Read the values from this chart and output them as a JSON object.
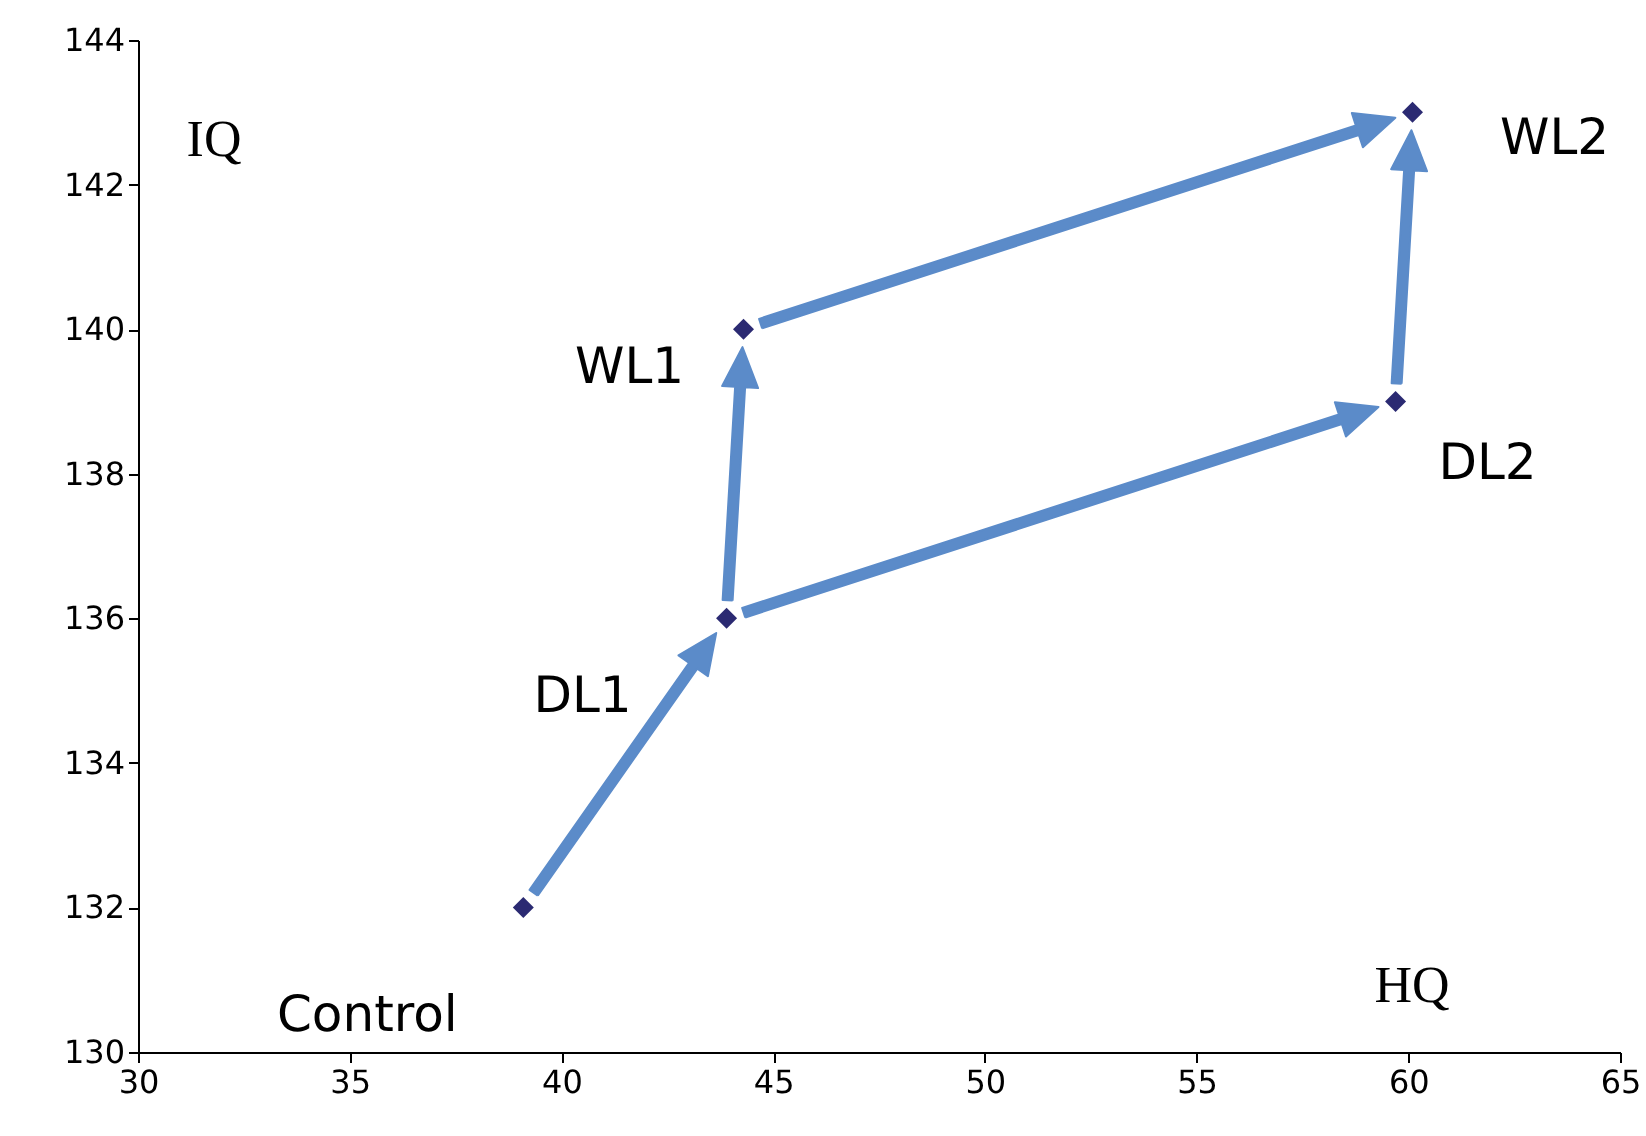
{
  "chart_data": {
    "type": "scatter",
    "xlabel": "HQ",
    "ylabel": "IQ",
    "x": [
      39.1,
      43.9,
      44.3,
      59.7,
      60.1
    ],
    "series": [
      {
        "color": "#2b2a72",
        "values": [
          132,
          136,
          140,
          139,
          143
        ]
      }
    ],
    "xlim": [
      30,
      65
    ],
    "xticks": [
      30,
      35,
      40,
      45,
      50,
      55,
      60,
      65
    ],
    "ylim": [
      130,
      144
    ],
    "yticks": [
      130,
      132,
      134,
      136,
      138,
      140,
      142,
      144
    ],
    "marker": "diamond",
    "grid": false,
    "annotations": [
      {
        "text": "Control",
        "x": 39.1,
        "y": 132
      },
      {
        "text": "DL1",
        "x": 43.9,
        "y": 136
      },
      {
        "text": "WL1",
        "x": 44.3,
        "y": 140
      },
      {
        "text": "DL2",
        "x": 59.7,
        "y": 139
      },
      {
        "text": "WL2",
        "x": 60.1,
        "y": 143
      }
    ]
  }
}
